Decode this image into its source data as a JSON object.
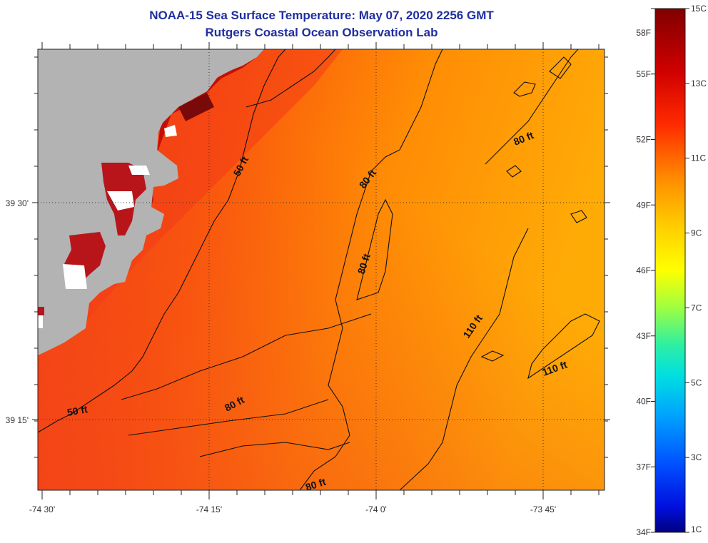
{
  "title": "NOAA-15 Sea Surface Temperature:  May 07, 2020 2256 GMT",
  "subtitle": "Rutgers Coastal Ocean Observation Lab",
  "map": {
    "x_ticks": [
      {
        "label": "-74 30'"
      },
      {
        "label": "-74 15'"
      },
      {
        "label": "-74 0'"
      },
      {
        "label": "-73 45'"
      }
    ],
    "y_ticks": [
      {
        "label": "39 30'"
      },
      {
        "label": "39 15'"
      }
    ],
    "contour_labels": [
      {
        "text": "50 ft"
      },
      {
        "text": "50 ft"
      },
      {
        "text": "80 ft"
      },
      {
        "text": "80 ft"
      },
      {
        "text": "80 ft"
      },
      {
        "text": "80 ft"
      },
      {
        "text": "80 ft"
      },
      {
        "text": "110 ft"
      },
      {
        "text": "110 ft"
      }
    ],
    "colors": {
      "land": "#b3b3b3",
      "warm": "#ff6a00",
      "cool": "#ffa500",
      "hot": "#b0000a",
      "contour": "#111111"
    }
  },
  "colorbar": {
    "celsius": [
      "15C",
      "13C",
      "11C",
      "9C",
      "7C",
      "5C",
      "3C",
      "1C"
    ],
    "fahrenheit": [
      "58F",
      "55F",
      "52F",
      "49F",
      "46F",
      "43F",
      "40F",
      "37F",
      "34F"
    ]
  }
}
